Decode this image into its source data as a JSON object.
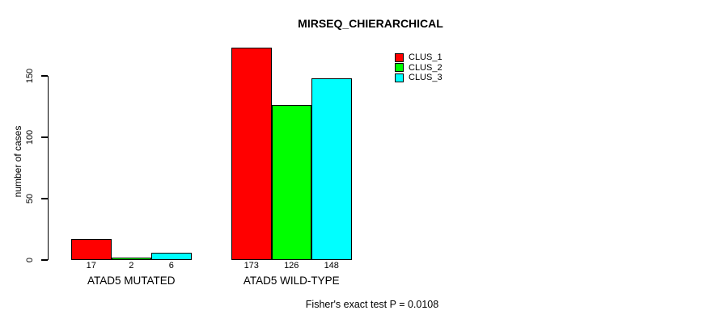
{
  "page": {
    "background_color": "#ffffff"
  },
  "chart_data": {
    "type": "bar",
    "title": "MIRSEQ_CHIERARCHICAL",
    "ylabel": "number of cases",
    "xlabel": "",
    "categories": [
      "ATAD5 MUTATED",
      "ATAD5 WILD-TYPE"
    ],
    "series": [
      {
        "name": "CLUS_1",
        "color": "#ff0000",
        "values": [
          17,
          173
        ]
      },
      {
        "name": "CLUS_2",
        "color": "#00ff00",
        "values": [
          2,
          126
        ]
      },
      {
        "name": "CLUS_3",
        "color": "#00ffff",
        "values": [
          6,
          148
        ]
      }
    ],
    "bar_value_labels": [
      [
        17,
        2,
        6
      ],
      [
        173,
        126,
        148
      ]
    ],
    "yticks": [
      0,
      50,
      100,
      150
    ],
    "ylim": [
      0,
      180
    ],
    "grid": false,
    "legend_position": "top-right",
    "legend_entries": [
      "CLUS_1",
      "CLUS_2",
      "CLUS_3"
    ],
    "bar_border_color": "#000000",
    "annotation": "Fisher's exact test P = 0.0108"
  }
}
